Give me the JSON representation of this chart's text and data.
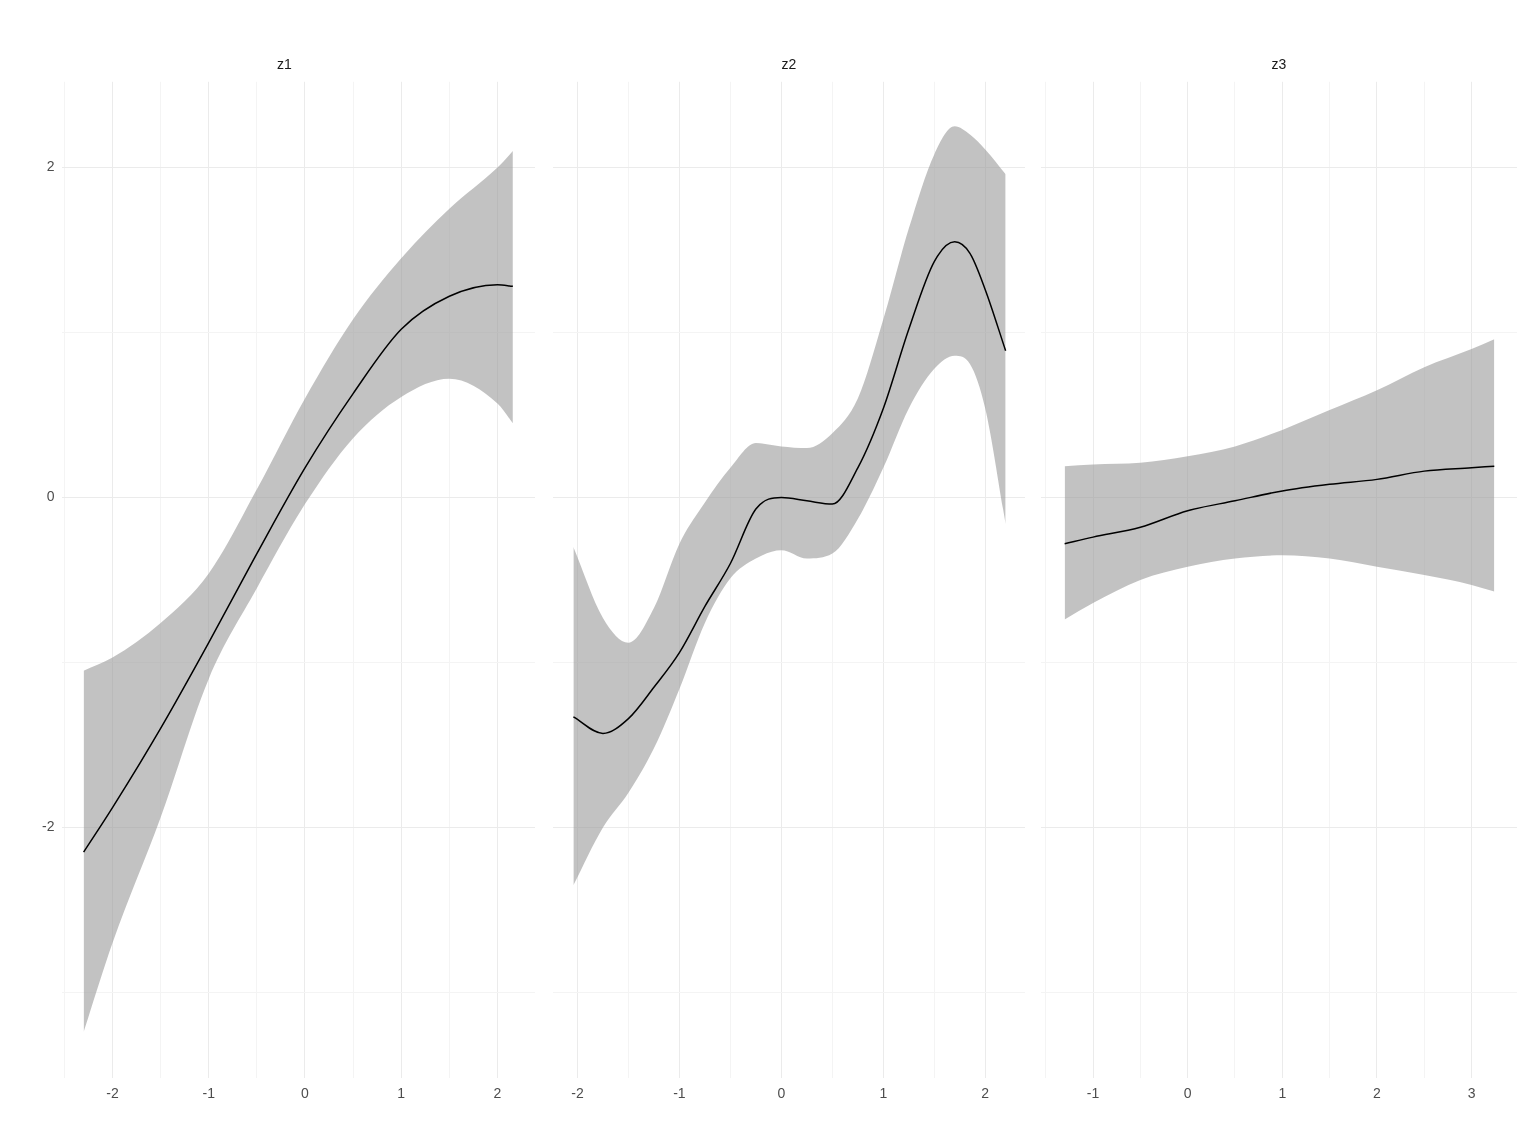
{
  "chart_data": [
    {
      "type": "line",
      "title": "z1",
      "xlim": [
        -2.52,
        2.39
      ],
      "ylim": [
        -3.52,
        2.52
      ],
      "xticks": [
        {
          "value": -2.5,
          "label": null
        },
        -2,
        {
          "value": -1.5,
          "label": null
        },
        -1,
        {
          "value": -0.5,
          "label": null
        },
        0,
        {
          "value": 0.5,
          "label": null
        },
        1,
        {
          "value": 1.5,
          "label": null
        },
        2
      ],
      "yticks": [
        {
          "value": -3,
          "label": null
        },
        -2,
        {
          "value": -1,
          "label": null
        },
        0,
        {
          "value": 1,
          "label": null
        },
        2
      ],
      "grid": true,
      "series": [
        {
          "color": "#000000",
          "x": [
            -2.3,
            -2,
            -1.5,
            -1,
            -0.5,
            0,
            0.5,
            1,
            1.5,
            2,
            2.16
          ],
          "values": [
            -2.15,
            -1.88,
            -1.4,
            -0.88,
            -0.34,
            0.18,
            0.63,
            1.02,
            1.22,
            1.29,
            1.28
          ],
          "lower": [
            -3.24,
            -2.7,
            -1.94,
            -1.1,
            -0.55,
            -0.04,
            0.36,
            0.61,
            0.72,
            0.57,
            0.45
          ],
          "upper": [
            -1.05,
            -0.97,
            -0.76,
            -0.46,
            0.05,
            0.6,
            1.08,
            1.45,
            1.75,
            2.0,
            2.1
          ]
        }
      ]
    },
    {
      "type": "line",
      "title": "z2",
      "xlim": [
        -2.24,
        2.39
      ],
      "ylim": [
        -3.52,
        2.52
      ],
      "tick_labels": "x",
      "xticks": [
        -2,
        {
          "value": -1.5,
          "label": null
        },
        -1,
        {
          "value": -0.5,
          "label": null
        },
        0,
        {
          "value": 0.5,
          "label": null
        },
        1,
        {
          "value": 1.5,
          "label": null
        },
        2
      ],
      "yticks": [
        {
          "value": -3,
          "label": null
        },
        -2,
        {
          "value": -1,
          "label": null
        },
        0,
        {
          "value": 1,
          "label": null
        },
        2
      ],
      "grid": true,
      "series": [
        {
          "color": "#000000",
          "x": [
            -2.04,
            -1.75,
            -1.5,
            -1.25,
            -1,
            -0.75,
            -0.5,
            -0.25,
            0,
            0.25,
            0.5,
            0.75,
            1,
            1.25,
            1.5,
            1.7,
            1.85,
            2,
            2.2
          ],
          "values": [
            -1.33,
            -1.43,
            -1.34,
            -1.15,
            -0.94,
            -0.66,
            -0.4,
            -0.07,
            0.0,
            -0.02,
            -0.04,
            0.18,
            0.54,
            1.02,
            1.43,
            1.55,
            1.48,
            1.26,
            0.89
          ],
          "lower": [
            -2.35,
            -2.0,
            -1.79,
            -1.52,
            -1.16,
            -0.76,
            -0.49,
            -0.37,
            -0.32,
            -0.37,
            -0.34,
            -0.13,
            0.18,
            0.54,
            0.78,
            0.86,
            0.81,
            0.54,
            -0.16
          ],
          "upper": [
            -0.3,
            -0.73,
            -0.88,
            -0.67,
            -0.28,
            -0.03,
            0.18,
            0.33,
            0.31,
            0.3,
            0.39,
            0.6,
            1.08,
            1.63,
            2.08,
            2.25,
            2.2,
            2.11,
            1.96
          ]
        }
      ]
    },
    {
      "type": "line",
      "title": "z3",
      "xlim": [
        -1.55,
        3.48
      ],
      "ylim": [
        -3.52,
        2.52
      ],
      "tick_labels": "x",
      "xticks": [
        {
          "value": -1.5,
          "label": null
        },
        -1,
        {
          "value": -0.5,
          "label": null
        },
        0,
        {
          "value": 0.5,
          "label": null
        },
        1,
        {
          "value": 1.5,
          "label": null
        },
        2,
        {
          "value": 2.5,
          "label": null
        },
        3
      ],
      "yticks": [
        {
          "value": -3,
          "label": null
        },
        -2,
        {
          "value": -1,
          "label": null
        },
        0,
        {
          "value": 1,
          "label": null
        },
        2
      ],
      "grid": true,
      "series": [
        {
          "color": "#000000",
          "x": [
            -1.3,
            -1,
            -0.5,
            0,
            0.5,
            1,
            1.5,
            2,
            2.5,
            3,
            3.24
          ],
          "values": [
            -0.28,
            -0.24,
            -0.18,
            -0.08,
            -0.02,
            0.04,
            0.08,
            0.11,
            0.16,
            0.18,
            0.19
          ],
          "lower": [
            -0.74,
            -0.64,
            -0.5,
            -0.42,
            -0.37,
            -0.35,
            -0.37,
            -0.42,
            -0.47,
            -0.53,
            -0.57
          ],
          "upper": [
            0.19,
            0.2,
            0.21,
            0.25,
            0.31,
            0.41,
            0.53,
            0.65,
            0.79,
            0.9,
            0.96
          ]
        }
      ]
    }
  ]
}
